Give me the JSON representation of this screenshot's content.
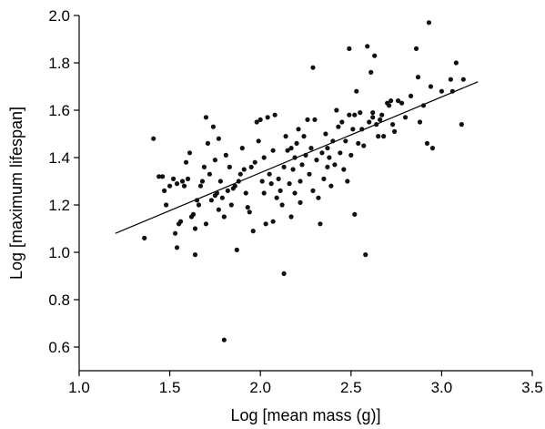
{
  "chart_data": {
    "type": "scatter",
    "xlabel": "Log [mean mass (g)]",
    "ylabel": "Log [maximum lifespan]",
    "xlim": [
      1.0,
      3.5
    ],
    "ylim": [
      0.5,
      2.0
    ],
    "xticks": [
      "1.0",
      "1.5",
      "2.0",
      "2.5",
      "3.0",
      "3.5"
    ],
    "yticks": [
      "0.6",
      "0.8",
      "1.0",
      "1.2",
      "1.4",
      "1.6",
      "1.8",
      "2.0"
    ],
    "grid": false,
    "trendline": {
      "x": [
        1.2,
        3.2
      ],
      "y": [
        1.08,
        1.72
      ]
    },
    "points": [
      [
        1.36,
        1.06
      ],
      [
        1.41,
        1.48
      ],
      [
        1.44,
        1.32
      ],
      [
        1.46,
        1.32
      ],
      [
        1.47,
        1.26
      ],
      [
        1.48,
        1.2
      ],
      [
        1.5,
        1.28
      ],
      [
        1.52,
        1.31
      ],
      [
        1.53,
        1.08
      ],
      [
        1.54,
        1.02
      ],
      [
        1.54,
        1.29
      ],
      [
        1.55,
        1.12
      ],
      [
        1.56,
        1.13
      ],
      [
        1.57,
        1.3
      ],
      [
        1.58,
        1.28
      ],
      [
        1.59,
        1.38
      ],
      [
        1.6,
        1.31
      ],
      [
        1.61,
        1.42
      ],
      [
        1.62,
        1.15
      ],
      [
        1.63,
        1.16
      ],
      [
        1.64,
        0.99
      ],
      [
        1.64,
        1.1
      ],
      [
        1.65,
        1.22
      ],
      [
        1.66,
        1.2
      ],
      [
        1.67,
        1.28
      ],
      [
        1.68,
        1.3
      ],
      [
        1.69,
        1.36
      ],
      [
        1.7,
        1.12
      ],
      [
        1.7,
        1.57
      ],
      [
        1.71,
        1.46
      ],
      [
        1.72,
        1.33
      ],
      [
        1.73,
        1.22
      ],
      [
        1.74,
        1.53
      ],
      [
        1.75,
        1.24
      ],
      [
        1.75,
        1.39
      ],
      [
        1.76,
        1.25
      ],
      [
        1.77,
        1.18
      ],
      [
        1.77,
        1.48
      ],
      [
        1.78,
        1.3
      ],
      [
        1.79,
        1.23
      ],
      [
        1.8,
        0.63
      ],
      [
        1.8,
        1.15
      ],
      [
        1.81,
        1.41
      ],
      [
        1.82,
        1.26
      ],
      [
        1.83,
        1.36
      ],
      [
        1.84,
        1.2
      ],
      [
        1.85,
        1.27
      ],
      [
        1.86,
        1.28
      ],
      [
        1.87,
        1.01
      ],
      [
        1.88,
        1.3
      ],
      [
        1.89,
        1.33
      ],
      [
        1.9,
        1.44
      ],
      [
        1.91,
        1.35
      ],
      [
        1.92,
        1.25
      ],
      [
        1.93,
        1.19
      ],
      [
        1.94,
        1.17
      ],
      [
        1.95,
        1.36
      ],
      [
        1.96,
        1.09
      ],
      [
        1.97,
        1.38
      ],
      [
        1.98,
        1.55
      ],
      [
        1.99,
        1.47
      ],
      [
        2.0,
        1.56
      ],
      [
        2.01,
        1.3
      ],
      [
        2.02,
        1.4
      ],
      [
        2.02,
        1.25
      ],
      [
        2.03,
        1.12
      ],
      [
        2.04,
        1.57
      ],
      [
        2.05,
        1.33
      ],
      [
        2.06,
        1.29
      ],
      [
        2.07,
        1.13
      ],
      [
        2.07,
        1.43
      ],
      [
        2.08,
        1.58
      ],
      [
        2.09,
        1.23
      ],
      [
        2.1,
        1.31
      ],
      [
        2.11,
        1.26
      ],
      [
        2.12,
        1.2
      ],
      [
        2.13,
        0.91
      ],
      [
        2.13,
        1.36
      ],
      [
        2.14,
        1.49
      ],
      [
        2.15,
        1.43
      ],
      [
        2.16,
        1.29
      ],
      [
        2.17,
        1.44
      ],
      [
        2.17,
        1.15
      ],
      [
        2.18,
        1.35
      ],
      [
        2.19,
        1.25
      ],
      [
        2.19,
        1.4
      ],
      [
        2.2,
        1.46
      ],
      [
        2.21,
        1.52
      ],
      [
        2.22,
        1.21
      ],
      [
        2.22,
        1.3
      ],
      [
        2.23,
        1.37
      ],
      [
        2.24,
        1.49
      ],
      [
        2.25,
        1.41
      ],
      [
        2.26,
        1.56
      ],
      [
        2.27,
        1.33
      ],
      [
        2.28,
        1.44
      ],
      [
        2.29,
        1.78
      ],
      [
        2.29,
        1.26
      ],
      [
        2.3,
        1.56
      ],
      [
        2.31,
        1.39
      ],
      [
        2.32,
        1.23
      ],
      [
        2.33,
        1.12
      ],
      [
        2.34,
        1.42
      ],
      [
        2.35,
        1.31
      ],
      [
        2.36,
        1.5
      ],
      [
        2.37,
        1.36
      ],
      [
        2.37,
        1.44
      ],
      [
        2.38,
        1.4
      ],
      [
        2.39,
        1.28
      ],
      [
        2.4,
        1.47
      ],
      [
        2.41,
        1.37
      ],
      [
        2.42,
        1.6
      ],
      [
        2.43,
        1.53
      ],
      [
        2.44,
        1.42
      ],
      [
        2.45,
        1.55
      ],
      [
        2.46,
        1.35
      ],
      [
        2.47,
        1.47
      ],
      [
        2.48,
        1.3
      ],
      [
        2.49,
        1.86
      ],
      [
        2.49,
        1.58
      ],
      [
        2.5,
        1.41
      ],
      [
        2.51,
        1.52
      ],
      [
        2.52,
        1.16
      ],
      [
        2.52,
        1.58
      ],
      [
        2.53,
        1.68
      ],
      [
        2.54,
        1.46
      ],
      [
        2.55,
        1.59
      ],
      [
        2.56,
        1.52
      ],
      [
        2.57,
        1.45
      ],
      [
        2.58,
        0.99
      ],
      [
        2.59,
        1.87
      ],
      [
        2.6,
        1.55
      ],
      [
        2.61,
        1.76
      ],
      [
        2.62,
        1.57
      ],
      [
        2.62,
        1.59
      ],
      [
        2.63,
        1.83
      ],
      [
        2.64,
        1.54
      ],
      [
        2.65,
        1.49
      ],
      [
        2.66,
        1.56
      ],
      [
        2.67,
        1.58
      ],
      [
        2.68,
        1.49
      ],
      [
        2.7,
        1.63
      ],
      [
        2.71,
        1.62
      ],
      [
        2.72,
        1.64
      ],
      [
        2.73,
        1.54
      ],
      [
        2.74,
        1.51
      ],
      [
        2.76,
        1.64
      ],
      [
        2.78,
        1.63
      ],
      [
        2.8,
        1.57
      ],
      [
        2.83,
        1.66
      ],
      [
        2.86,
        1.86
      ],
      [
        2.87,
        1.74
      ],
      [
        2.88,
        1.55
      ],
      [
        2.9,
        1.62
      ],
      [
        2.92,
        1.46
      ],
      [
        2.93,
        1.97
      ],
      [
        2.94,
        1.7
      ],
      [
        2.95,
        1.44
      ],
      [
        3.0,
        1.68
      ],
      [
        3.05,
        1.73
      ],
      [
        3.06,
        1.68
      ],
      [
        3.08,
        1.8
      ],
      [
        3.11,
        1.54
      ],
      [
        3.12,
        1.73
      ]
    ]
  }
}
